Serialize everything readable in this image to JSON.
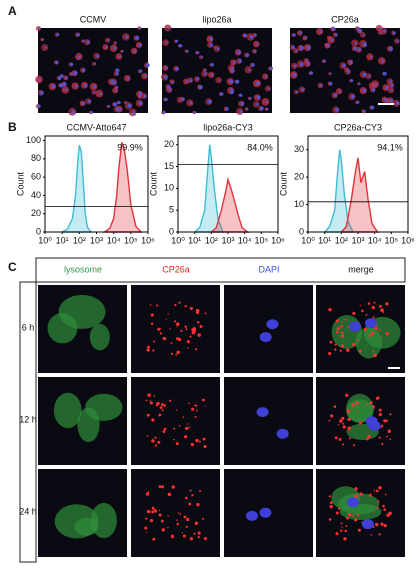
{
  "panel_a": {
    "label": "A",
    "titles": [
      "CCMV",
      "lipo26a",
      "CP26a"
    ]
  },
  "panel_b": {
    "label": "B"
  },
  "chart_data": [
    {
      "type": "area",
      "title": "CCMV-Atto647",
      "y_label": "Count",
      "annotation": "99.9%",
      "log_x": true,
      "xlim": [
        1,
        1000000
      ],
      "xticks": [
        {
          "value": 1,
          "label": "10⁰"
        },
        {
          "value": 10,
          "label": "10¹"
        },
        {
          "value": 100,
          "label": "10²"
        },
        {
          "value": 1000,
          "label": "10³"
        },
        {
          "value": 10000,
          "label": "10⁴"
        },
        {
          "value": 100000,
          "label": "10⁵"
        },
        {
          "value": 1000000,
          "label": "10⁶"
        }
      ],
      "ylim": [
        0,
        105
      ],
      "yticks": [
        0,
        20,
        40,
        60,
        80,
        100
      ],
      "gate": 28,
      "series": [
        {
          "color": "#3fbcd4",
          "x": [
            10,
            20,
            40,
            60,
            80,
            100,
            130,
            170,
            220,
            300,
            500
          ],
          "values": [
            0,
            3,
            15,
            40,
            75,
            95,
            88,
            55,
            20,
            5,
            0
          ]
        },
        {
          "color": "#e0343a",
          "x": [
            3000,
            6000,
            10000,
            15000,
            20000,
            30000,
            40000,
            60000,
            100000,
            200000,
            400000
          ],
          "values": [
            0,
            4,
            15,
            40,
            70,
            98,
            92,
            70,
            30,
            6,
            0
          ]
        }
      ]
    },
    {
      "type": "area",
      "title": "lipo26a-CY3",
      "y_label": "Count",
      "annotation": "84.0%",
      "log_x": true,
      "xlim": [
        1,
        1000000
      ],
      "xticks": [
        {
          "value": 1,
          "label": "10⁰"
        },
        {
          "value": 10,
          "label": "10¹"
        },
        {
          "value": 100,
          "label": "10²"
        },
        {
          "value": 1000,
          "label": "10³"
        },
        {
          "value": 10000,
          "label": "10⁴"
        },
        {
          "value": 100000,
          "label": "10⁵"
        },
        {
          "value": 1000000,
          "label": "10⁶"
        }
      ],
      "ylim": [
        0,
        22
      ],
      "yticks": [
        0,
        5,
        10,
        15,
        20
      ],
      "gate": 15.5,
      "series": [
        {
          "color": "#3fbcd4",
          "x": [
            10,
            20,
            40,
            60,
            80,
            100,
            150,
            250,
            500
          ],
          "values": [
            0,
            1,
            5,
            14,
            20,
            17,
            10,
            3,
            0
          ]
        },
        {
          "color": "#e0343a",
          "x": [
            100,
            200,
            400,
            700,
            1000,
            1500,
            2500,
            4000,
            7000,
            15000
          ],
          "values": [
            0,
            1,
            5,
            9,
            12,
            10,
            7,
            4,
            1,
            0
          ]
        }
      ]
    },
    {
      "type": "area",
      "title": "CP26a-CY3",
      "y_label": "Count",
      "annotation": "94.1%",
      "log_x": true,
      "xlim": [
        1,
        1000000
      ],
      "xticks": [
        {
          "value": 1,
          "label": "10⁰"
        },
        {
          "value": 10,
          "label": "10¹"
        },
        {
          "value": 100,
          "label": "10²"
        },
        {
          "value": 1000,
          "label": "10³"
        },
        {
          "value": 10000,
          "label": "10⁴"
        },
        {
          "value": 100000,
          "label": "10⁵"
        },
        {
          "value": 1000000,
          "label": "10⁶"
        }
      ],
      "ylim": [
        0,
        35
      ],
      "yticks": [
        0,
        10,
        20,
        30
      ],
      "gate": 11,
      "series": [
        {
          "color": "#3fbcd4",
          "x": [
            10,
            20,
            40,
            60,
            80,
            100,
            150,
            250,
            500
          ],
          "values": [
            0,
            2,
            8,
            22,
            30,
            26,
            14,
            4,
            0
          ]
        },
        {
          "color": "#e0343a",
          "x": [
            100,
            200,
            400,
            700,
            1000,
            1500,
            2500,
            4000,
            7000,
            15000
          ],
          "values": [
            0,
            2,
            12,
            22,
            27,
            18,
            22,
            12,
            3,
            0
          ]
        }
      ]
    }
  ],
  "panel_c": {
    "label": "C",
    "columns": [
      "lysosome",
      "CP26a",
      "DAPI",
      "merge"
    ],
    "rows": [
      "6 h",
      "12 h",
      "24 h"
    ]
  }
}
